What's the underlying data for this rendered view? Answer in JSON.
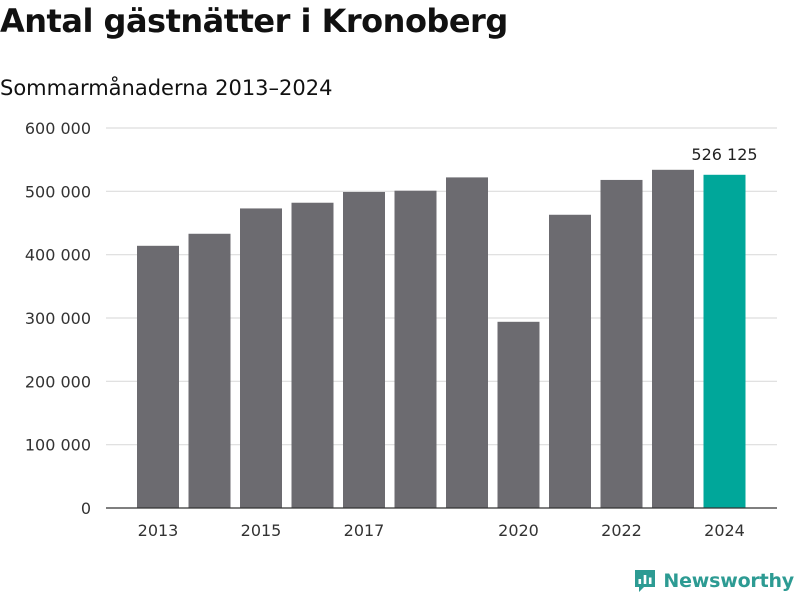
{
  "header": {
    "title": "Antal gästnätter i Kronoberg",
    "subtitle": "Sommarmånaderna 2013–2024"
  },
  "brand": {
    "name": "Newsworthy",
    "icon": "bar-chart-logo-icon",
    "color": "#2d9b93"
  },
  "colors": {
    "bar": "#6c6b70",
    "highlight": "#00a79a",
    "grid": "#dddddd",
    "axis": "#333333"
  },
  "chart_data": {
    "type": "bar",
    "categories": [
      "2013",
      "2014",
      "2015",
      "2016",
      "2017",
      "2018",
      "2019",
      "2020",
      "2021",
      "2022",
      "2023",
      "2024"
    ],
    "values": [
      414000,
      433000,
      473000,
      482000,
      499000,
      501000,
      522000,
      294000,
      463000,
      518000,
      534000,
      526125
    ],
    "highlight_index": 11,
    "data_labels": [
      {
        "index": 11,
        "text": "526 125"
      }
    ],
    "x_tick_labels": [
      {
        "index": 0,
        "text": "2013"
      },
      {
        "index": 2,
        "text": "2015"
      },
      {
        "index": 4,
        "text": "2017"
      },
      {
        "index": 7,
        "text": "2020"
      },
      {
        "index": 9,
        "text": "2022"
      },
      {
        "index": 11,
        "text": "2024"
      }
    ],
    "y_ticks": [
      {
        "value": 0,
        "label": "0"
      },
      {
        "value": 100000,
        "label": "100 000"
      },
      {
        "value": 200000,
        "label": "200 000"
      },
      {
        "value": 300000,
        "label": "300 000"
      },
      {
        "value": 400000,
        "label": "400 000"
      },
      {
        "value": 500000,
        "label": "500 000"
      },
      {
        "value": 600000,
        "label": "600 000"
      }
    ],
    "ylim": [
      0,
      600000
    ],
    "grid": true,
    "legend": "none"
  }
}
